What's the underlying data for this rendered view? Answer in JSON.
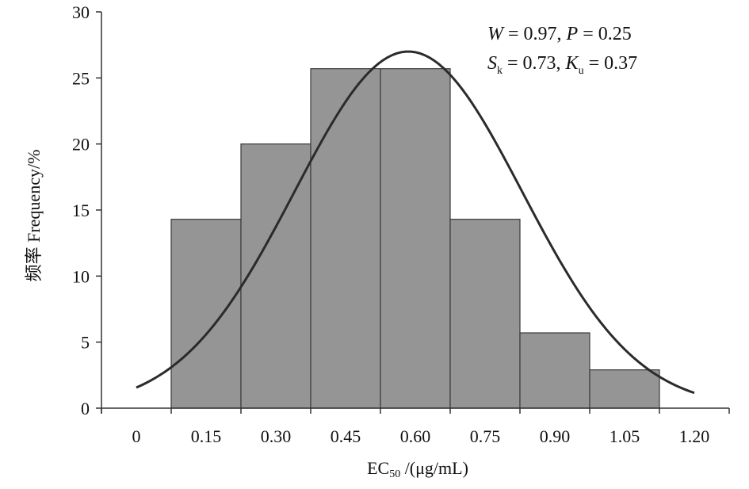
{
  "chart_data": {
    "type": "bar",
    "subtype": "histogram-with-normal-curve",
    "x_tick_labels": [
      "0",
      "0.15",
      "0.30",
      "0.45",
      "0.60",
      "0.75",
      "0.90",
      "1.05",
      "1.20"
    ],
    "bins": [
      {
        "from": 0.075,
        "to": 0.225,
        "value": 14.3
      },
      {
        "from": 0.225,
        "to": 0.375,
        "value": 20.0
      },
      {
        "from": 0.375,
        "to": 0.525,
        "value": 25.7
      },
      {
        "from": 0.525,
        "to": 0.675,
        "value": 25.7
      },
      {
        "from": 0.675,
        "to": 0.825,
        "value": 14.3
      },
      {
        "from": 0.825,
        "to": 0.975,
        "value": 5.7
      },
      {
        "from": 0.975,
        "to": 1.125,
        "value": 2.9
      }
    ],
    "curve": {
      "type": "normal-fit",
      "mean": 0.585,
      "sd": 0.245,
      "peak": 27.0,
      "x_range": [
        0.0,
        1.2
      ]
    },
    "ylim": [
      0,
      30
    ],
    "y_ticks": [
      0,
      5,
      10,
      15,
      20,
      25,
      30
    ],
    "xlim": [
      -0.075,
      1.275
    ],
    "xlabel": {
      "main": "EC",
      "subscript": "50",
      "rest": " /(μg/mL)"
    },
    "ylabel": "频率 Frequency/%",
    "annotations": {
      "line1": {
        "w": "W",
        "w_rest": " = 0.97, ",
        "p": "P",
        "p_rest": " = 0.25"
      },
      "line2": {
        "s": "S",
        "s_sub": "k",
        "s_rest": " = 0.73, ",
        "k": "K",
        "k_sub": "u",
        "k_rest": " = 0.37"
      }
    },
    "colors": {
      "bar": "#969595",
      "bar_edge": "#3a3a3a",
      "curve": "#2b2b2b",
      "axis": "#333333"
    },
    "grid": false,
    "legend": "none"
  }
}
